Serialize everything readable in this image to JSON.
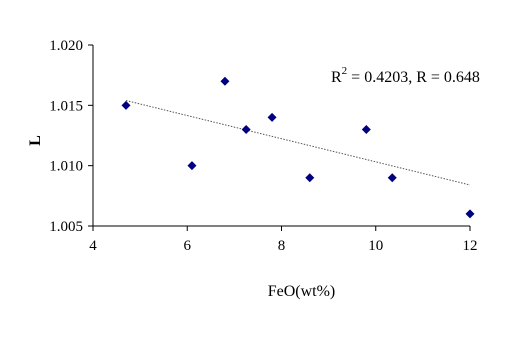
{
  "chart_data": {
    "type": "scatter",
    "title": "",
    "xlabel": "FeO(wt%)",
    "ylabel": "L",
    "xlim": [
      4,
      12
    ],
    "ylim": [
      1.005,
      1.02
    ],
    "xticks": [
      "4",
      "6",
      "8",
      "10",
      "12"
    ],
    "yticks": [
      "1.005",
      "1.010",
      "1.015",
      "1.020"
    ],
    "grid": false,
    "legend": "none",
    "marker": "diamond",
    "marker_color": "#000080",
    "trendline_color": "#555555",
    "series": [
      {
        "points": [
          {
            "x": 4.7,
            "y": 1.015
          },
          {
            "x": 6.1,
            "y": 1.01
          },
          {
            "x": 6.8,
            "y": 1.017
          },
          {
            "x": 7.25,
            "y": 1.013
          },
          {
            "x": 7.8,
            "y": 1.014
          },
          {
            "x": 8.6,
            "y": 1.009
          },
          {
            "x": 9.8,
            "y": 1.013
          },
          {
            "x": 10.35,
            "y": 1.009
          },
          {
            "x": 12.0,
            "y": 1.006
          }
        ]
      }
    ],
    "trendline": {
      "type": "linear",
      "from": {
        "x": 4.7,
        "y": 1.0154
      },
      "to": {
        "x": 12.0,
        "y": 1.0084
      }
    },
    "annotation": {
      "r_label": "R",
      "r2_exponent": "2",
      "r2_rest": " = 0.4203, R = 0.648"
    }
  }
}
